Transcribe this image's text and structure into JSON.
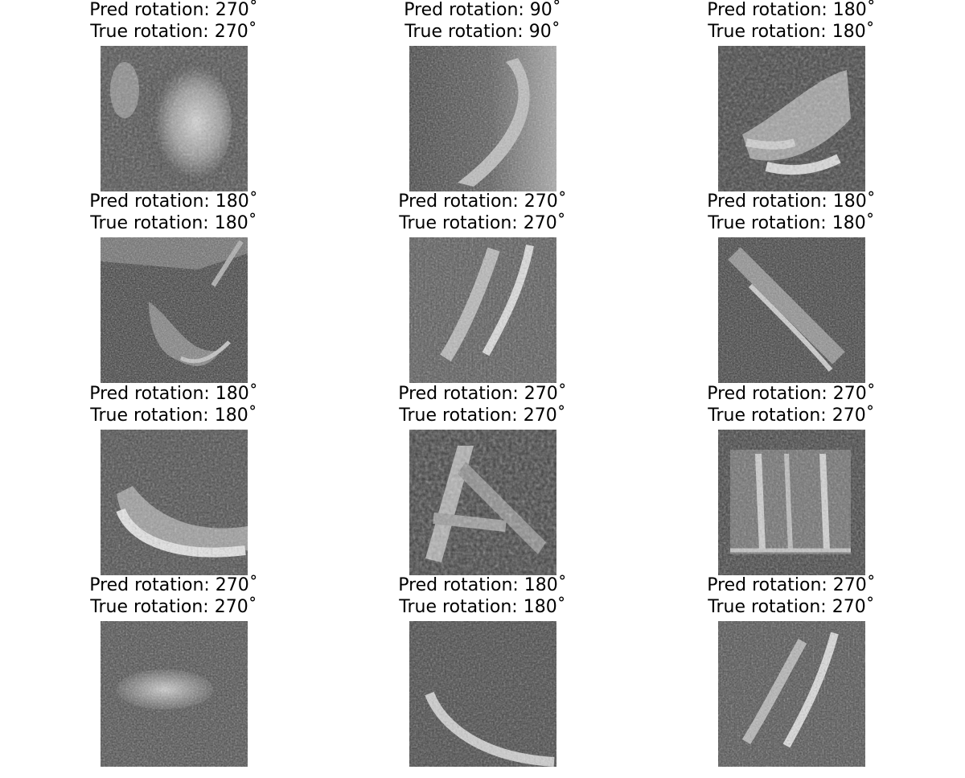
{
  "cells": [
    {
      "pred": "Pred rotation: 270$^\\circ$",
      "true": "True rotation: 270$^\\circ$",
      "pred_text": "Pred rotation: 270˚",
      "true_text": "True rotation: 270˚",
      "image": "grayscale-sonar-patch"
    },
    {
      "pred_text": "Pred rotation: 90˚",
      "true_text": "True rotation: 90˚",
      "image": "grayscale-sonar-patch"
    },
    {
      "pred_text": "Pred rotation: 180˚",
      "true_text": "True rotation: 180˚",
      "image": "grayscale-sonar-patch"
    },
    {
      "pred_text": "Pred rotation: 180˚",
      "true_text": "True rotation: 180˚",
      "image": "grayscale-sonar-patch"
    },
    {
      "pred_text": "Pred rotation: 270˚",
      "true_text": "True rotation: 270˚",
      "image": "grayscale-sonar-patch"
    },
    {
      "pred_text": "Pred rotation: 180˚",
      "true_text": "True rotation: 180˚",
      "image": "grayscale-sonar-patch"
    },
    {
      "pred_text": "Pred rotation: 180˚",
      "true_text": "True rotation: 180˚",
      "image": "grayscale-sonar-patch"
    },
    {
      "pred_text": "Pred rotation: 270˚",
      "true_text": "True rotation: 270˚",
      "image": "grayscale-sonar-patch"
    },
    {
      "pred_text": "Pred rotation: 270˚",
      "true_text": "True rotation: 270˚",
      "image": "grayscale-sonar-patch"
    },
    {
      "pred_text": "Pred rotation: 270˚",
      "true_text": "True rotation: 270˚",
      "image": "grayscale-sonar-patch"
    },
    {
      "pred_text": "Pred rotation: 180˚",
      "true_text": "True rotation: 180˚",
      "image": "grayscale-sonar-patch"
    },
    {
      "pred_text": "Pred rotation: 270˚",
      "true_text": "True rotation: 270˚",
      "image": "grayscale-sonar-patch"
    }
  ]
}
